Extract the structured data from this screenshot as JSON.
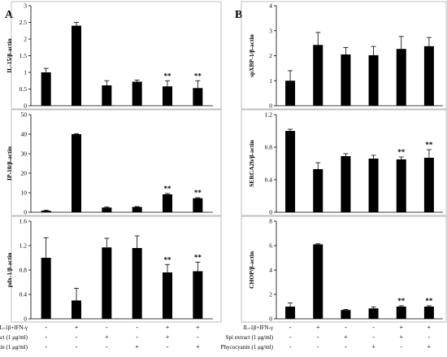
{
  "panels": [
    {
      "letter": "A"
    },
    {
      "letter": "B"
    }
  ],
  "treatments": {
    "rows": [
      {
        "label": "IL-1β+IFN-γ",
        "signs": [
          "-",
          "+",
          "-",
          "-",
          "+",
          "+"
        ]
      },
      {
        "label": "Spi extract (1 μg/ml)",
        "signs": [
          "-",
          "-",
          "+",
          "-",
          "+",
          "-"
        ]
      },
      {
        "label": "Phycocyanin (1 μg/ml)",
        "signs": [
          "-",
          "-",
          "-",
          "+",
          "-",
          "+"
        ]
      }
    ]
  },
  "chart_data": [
    {
      "type": "bar",
      "panel": "A",
      "row": 0,
      "ylabel": "IL-15/β-actin",
      "ylim": [
        0,
        3
      ],
      "yticks": [
        0,
        0.5,
        1,
        1.5,
        2,
        2.5,
        3
      ],
      "ytick_labels": [
        "0",
        "0.5",
        "1",
        "1.5",
        "2",
        "2.5",
        "3"
      ],
      "values": [
        1.0,
        2.4,
        0.61,
        0.72,
        0.58,
        0.53
      ],
      "errors": [
        0.12,
        0.1,
        0.14,
        0.05,
        0.17,
        0.22
      ],
      "significance": [
        "",
        "",
        "",
        "",
        "**",
        "**"
      ]
    },
    {
      "type": "bar",
      "panel": "A",
      "row": 1,
      "ylabel": "IP-10/β-actin",
      "ylim": [
        0,
        50
      ],
      "yticks": [
        0,
        10,
        20,
        30,
        40,
        50
      ],
      "ytick_labels": [
        "0",
        "10",
        "20",
        "30",
        "40",
        "50"
      ],
      "values": [
        0.8,
        40.0,
        2.4,
        2.7,
        9.2,
        7.2
      ],
      "errors": [
        0.3,
        0.3,
        0.3,
        0.2,
        0.4,
        0.3
      ],
      "significance": [
        "",
        "",
        "",
        "",
        "**",
        "**"
      ]
    },
    {
      "type": "bar",
      "panel": "A",
      "row": 2,
      "ylabel": "pdx-1/β-actin",
      "ylim": [
        0,
        1.6
      ],
      "yticks": [
        0,
        0.4,
        0.8,
        1.2,
        1.6
      ],
      "ytick_labels": [
        "0",
        "0.4",
        "0.8",
        "1.2",
        "1.6"
      ],
      "values": [
        1.0,
        0.3,
        1.17,
        1.16,
        0.76,
        0.78
      ],
      "errors": [
        0.33,
        0.2,
        0.15,
        0.2,
        0.13,
        0.15
      ],
      "significance": [
        "",
        "",
        "",
        "",
        "**",
        "**"
      ]
    },
    {
      "type": "bar",
      "panel": "B",
      "row": 0,
      "ylabel": "spXBP-1/β-actin",
      "ylim": [
        0,
        4
      ],
      "yticks": [
        0,
        1,
        2,
        3,
        4
      ],
      "ytick_labels": [
        "0",
        "1",
        "2",
        "3",
        "4"
      ],
      "values": [
        1.0,
        2.43,
        2.05,
        2.02,
        2.27,
        2.38
      ],
      "errors": [
        0.4,
        0.5,
        0.28,
        0.35,
        0.5,
        0.35
      ],
      "significance": [
        "",
        "",
        "",
        "",
        "",
        ""
      ]
    },
    {
      "type": "bar",
      "panel": "B",
      "row": 1,
      "ylabel": "SERCA2b/β-actin",
      "ylim": [
        0,
        1.2
      ],
      "yticks": [
        0,
        0.4,
        0.8,
        1.2
      ],
      "ytick_labels": [
        "0",
        "0.4",
        "0.8",
        "1.2"
      ],
      "values": [
        1.0,
        0.53,
        0.69,
        0.66,
        0.65,
        0.67
      ],
      "errors": [
        0.02,
        0.08,
        0.03,
        0.04,
        0.03,
        0.1
      ],
      "significance": [
        "",
        "",
        "",
        "",
        "**",
        "**"
      ]
    },
    {
      "type": "bar",
      "panel": "B",
      "row": 2,
      "ylabel": "CHOP/β-actin",
      "ylim": [
        0,
        8
      ],
      "yticks": [
        0,
        2,
        4,
        6,
        8
      ],
      "ytick_labels": [
        "0",
        "2",
        "4",
        "6",
        "8"
      ],
      "values": [
        1.0,
        6.1,
        0.72,
        0.85,
        1.0,
        1.0
      ],
      "errors": [
        0.3,
        0.05,
        0.05,
        0.12,
        0.07,
        0.07
      ],
      "significance": [
        "",
        "",
        "",
        "",
        "**",
        "**"
      ]
    }
  ]
}
